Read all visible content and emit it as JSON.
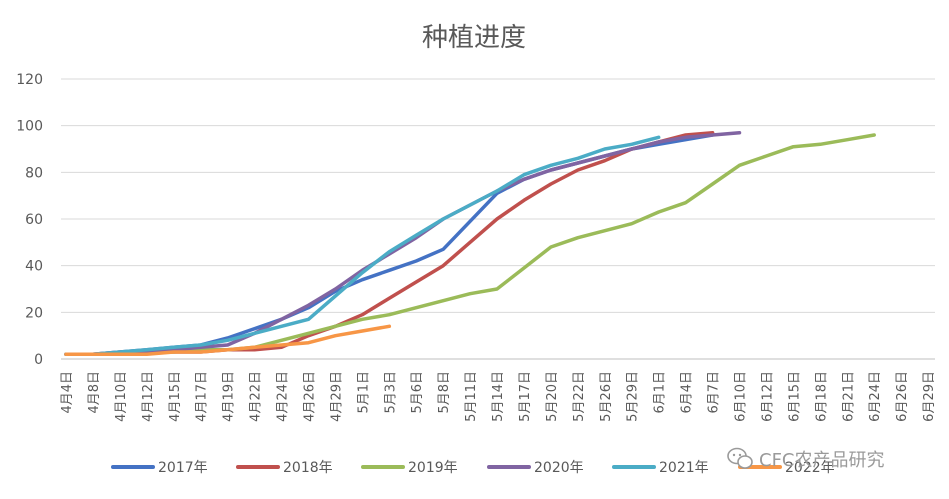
{
  "chart_data": {
    "type": "line",
    "title": "种植进度",
    "xlabel": "",
    "ylabel": "",
    "ylim": [
      0,
      120
    ],
    "yticks": [
      0,
      20,
      40,
      60,
      80,
      100,
      120
    ],
    "grid": true,
    "legend_position": "bottom",
    "categories": [
      "4月4日",
      "4月8日",
      "4月10日",
      "4月12日",
      "4月15日",
      "4月17日",
      "4月19日",
      "4月22日",
      "4月24日",
      "4月26日",
      "4月29日",
      "5月1日",
      "5月3日",
      "5月6日",
      "5月8日",
      "5月11日",
      "5月14日",
      "5月17日",
      "5月20日",
      "5月22日",
      "5月26日",
      "5月29日",
      "6月1日",
      "6月4日",
      "6月7日",
      "6月10日",
      "6月12日",
      "6月15日",
      "6月18日",
      "6月21日",
      "6月24日",
      "6月26日",
      "6月29日"
    ],
    "series": [
      {
        "name": "2017年",
        "color": "#4472c4",
        "points": [
          [
            0,
            2
          ],
          [
            1,
            2
          ],
          [
            2,
            3
          ],
          [
            3,
            4
          ],
          [
            4,
            5
          ],
          [
            5,
            6
          ],
          [
            6,
            9
          ],
          [
            7,
            13
          ],
          [
            8,
            17
          ],
          [
            9,
            22
          ],
          [
            10,
            29
          ],
          [
            11,
            34
          ],
          [
            12,
            38
          ],
          [
            13,
            42
          ],
          [
            14,
            47
          ],
          [
            15,
            59
          ],
          [
            16,
            71
          ],
          [
            17,
            77
          ],
          [
            18,
            81
          ],
          [
            19,
            84
          ],
          [
            20,
            87
          ],
          [
            21,
            90
          ],
          [
            22,
            92
          ],
          [
            23,
            94
          ],
          [
            24,
            96
          ]
        ]
      },
      {
        "name": "2018年",
        "color": "#c0504d",
        "points": [
          [
            0,
            2
          ],
          [
            1,
            2
          ],
          [
            2,
            2
          ],
          [
            3,
            3
          ],
          [
            4,
            3
          ],
          [
            5,
            3
          ],
          [
            6,
            4
          ],
          [
            7,
            4
          ],
          [
            8,
            5
          ],
          [
            9,
            10
          ],
          [
            10,
            14
          ],
          [
            11,
            19
          ],
          [
            12,
            26
          ],
          [
            13,
            33
          ],
          [
            14,
            40
          ],
          [
            15,
            50
          ],
          [
            16,
            60
          ],
          [
            17,
            68
          ],
          [
            18,
            75
          ],
          [
            19,
            81
          ],
          [
            20,
            85
          ],
          [
            21,
            90
          ],
          [
            22,
            93
          ],
          [
            23,
            96
          ],
          [
            24,
            97
          ]
        ]
      },
      {
        "name": "2019年",
        "color": "#9bbb59",
        "points": [
          [
            0,
            2
          ],
          [
            1,
            2
          ],
          [
            2,
            2
          ],
          [
            3,
            3
          ],
          [
            4,
            3
          ],
          [
            5,
            4
          ],
          [
            6,
            4
          ],
          [
            7,
            5
          ],
          [
            8,
            8
          ],
          [
            9,
            11
          ],
          [
            10,
            14
          ],
          [
            11,
            17
          ],
          [
            12,
            19
          ],
          [
            13,
            22
          ],
          [
            14,
            25
          ],
          [
            15,
            28
          ],
          [
            16,
            30
          ],
          [
            17,
            39
          ],
          [
            18,
            48
          ],
          [
            19,
            52
          ],
          [
            20,
            55
          ],
          [
            21,
            58
          ],
          [
            22,
            63
          ],
          [
            23,
            67
          ],
          [
            24,
            75
          ],
          [
            25,
            83
          ],
          [
            26,
            87
          ],
          [
            27,
            91
          ],
          [
            28,
            92
          ],
          [
            29,
            94
          ],
          [
            30,
            96
          ]
        ]
      },
      {
        "name": "2020年",
        "color": "#8064a2",
        "points": [
          [
            0,
            2
          ],
          [
            1,
            2
          ],
          [
            2,
            3
          ],
          [
            3,
            3
          ],
          [
            4,
            4
          ],
          [
            5,
            5
          ],
          [
            6,
            6
          ],
          [
            7,
            11
          ],
          [
            8,
            17
          ],
          [
            9,
            23
          ],
          [
            10,
            30
          ],
          [
            11,
            38
          ],
          [
            12,
            45
          ],
          [
            13,
            52
          ],
          [
            14,
            60
          ],
          [
            15,
            66
          ],
          [
            16,
            72
          ],
          [
            17,
            77
          ],
          [
            18,
            81
          ],
          [
            19,
            84
          ],
          [
            20,
            87
          ],
          [
            21,
            90
          ],
          [
            22,
            93
          ],
          [
            23,
            95
          ],
          [
            24,
            96
          ],
          [
            25,
            97
          ]
        ]
      },
      {
        "name": "2021年",
        "color": "#4bacc6",
        "points": [
          [
            0,
            2
          ],
          [
            1,
            2
          ],
          [
            2,
            3
          ],
          [
            3,
            4
          ],
          [
            4,
            5
          ],
          [
            5,
            6
          ],
          [
            6,
            8
          ],
          [
            7,
            11
          ],
          [
            8,
            14
          ],
          [
            9,
            17
          ],
          [
            10,
            27
          ],
          [
            11,
            37
          ],
          [
            12,
            46
          ],
          [
            13,
            53
          ],
          [
            14,
            60
          ],
          [
            15,
            66
          ],
          [
            16,
            72
          ],
          [
            17,
            79
          ],
          [
            18,
            83
          ],
          [
            19,
            86
          ],
          [
            20,
            90
          ],
          [
            21,
            92
          ],
          [
            22,
            95
          ]
        ]
      },
      {
        "name": "2022年",
        "color": "#f79646",
        "points": [
          [
            0,
            2
          ],
          [
            1,
            2
          ],
          [
            2,
            2
          ],
          [
            3,
            2
          ],
          [
            4,
            3
          ],
          [
            5,
            3
          ],
          [
            6,
            4
          ],
          [
            7,
            5
          ],
          [
            8,
            6
          ],
          [
            9,
            7
          ],
          [
            10,
            10
          ],
          [
            11,
            12
          ],
          [
            12,
            14
          ]
        ]
      }
    ]
  },
  "watermark": {
    "icon": "wechat-icon",
    "text": "CFC农产品研究"
  }
}
